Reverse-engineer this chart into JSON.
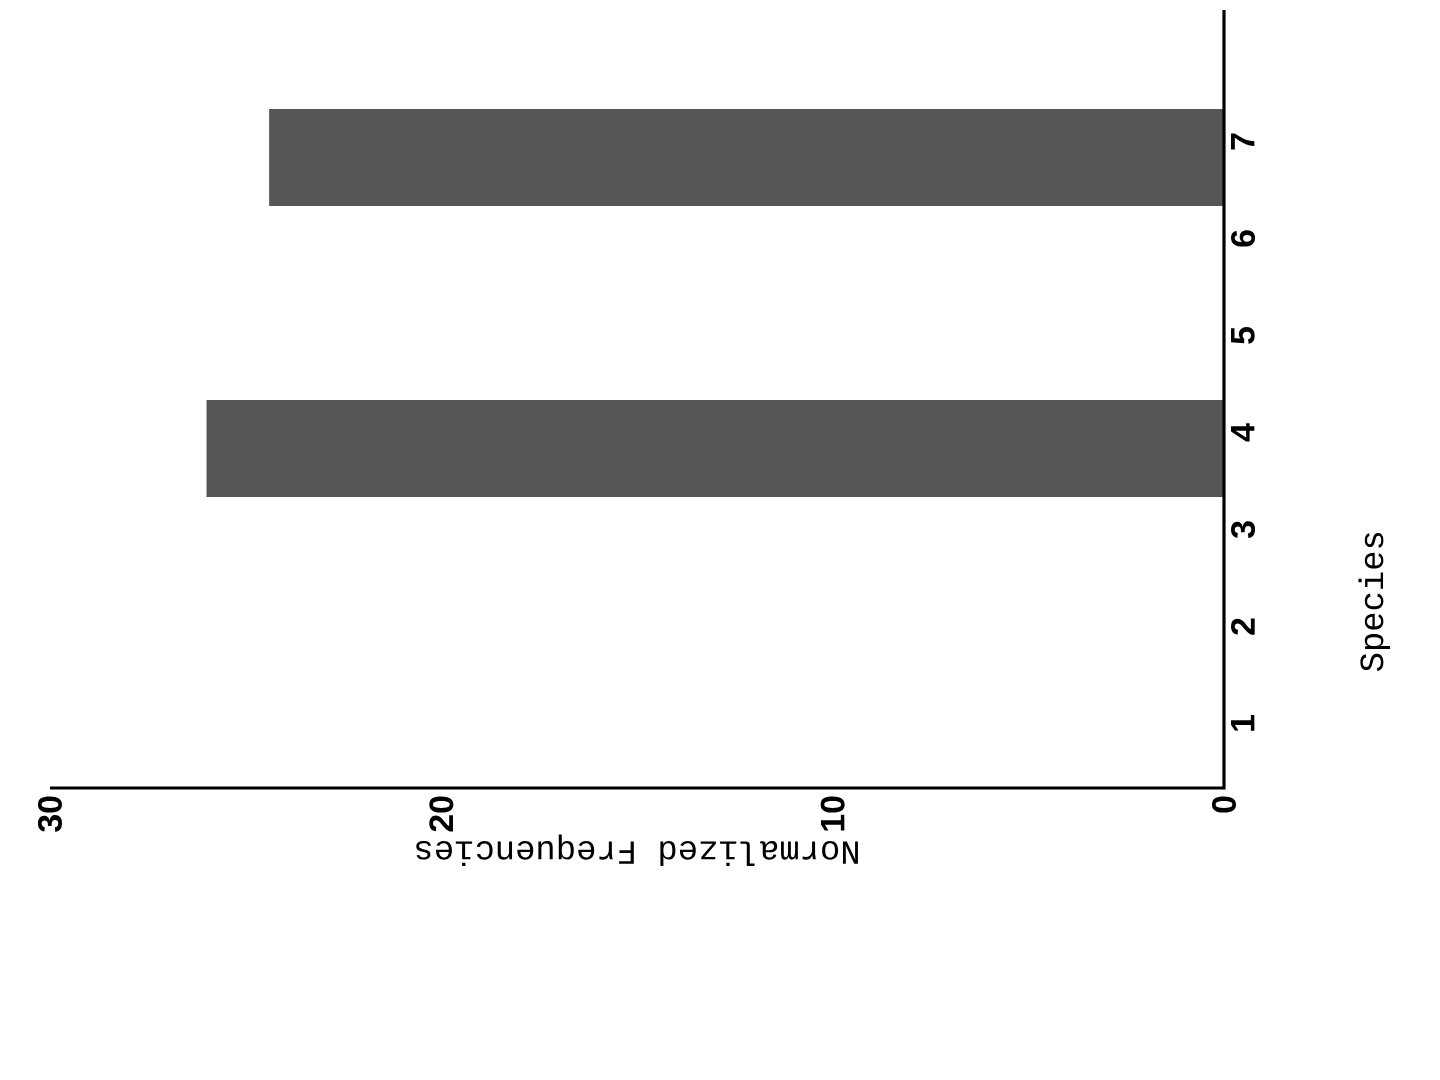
{
  "chart_data": {
    "type": "bar",
    "orientation": "horizontal",
    "xlabel": "Normalized Frequencies",
    "ylabel": "Species",
    "categories": [
      "7",
      "6",
      "5",
      "4",
      "3",
      "2",
      "1"
    ],
    "values": [
      24.4,
      0,
      0,
      26,
      0,
      0,
      0
    ],
    "color": "#555555",
    "xlim": [
      30,
      0
    ],
    "xticks": [
      30,
      20,
      10,
      0
    ]
  }
}
